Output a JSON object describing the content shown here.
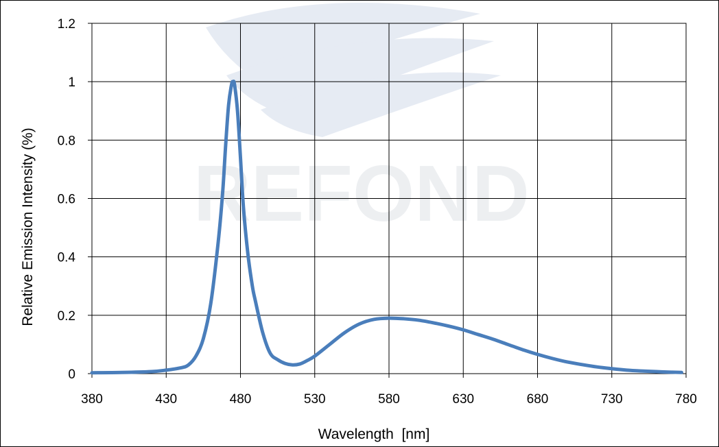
{
  "chart_data": {
    "type": "line",
    "xlabel": "Wavelength  [nm]",
    "ylabel": "Relative Emission Intensity (%)",
    "xlim": [
      380,
      780
    ],
    "ylim": [
      0,
      1.2
    ],
    "xticks": [
      "380",
      "430",
      "480",
      "530",
      "580",
      "630",
      "680",
      "730",
      "780"
    ],
    "yticks": [
      "0",
      "0.2",
      "0.4",
      "0.6",
      "0.8",
      "1",
      "1.2"
    ],
    "grid": true,
    "legend": "none",
    "watermark": "REFOND",
    "series_color": "#4a7ebb",
    "series": [
      {
        "x": [
          380,
          400,
          420,
          430,
          440,
          445,
          450,
          455,
          460,
          465,
          468,
          470,
          472,
          474,
          475,
          476,
          478,
          480,
          482,
          485,
          488,
          490,
          495,
          500,
          505,
          510,
          515,
          520,
          525,
          530,
          540,
          550,
          560,
          570,
          580,
          590,
          600,
          610,
          620,
          630,
          640,
          650,
          660,
          670,
          680,
          690,
          700,
          710,
          720,
          730,
          740,
          750,
          760,
          770,
          777
        ],
        "y": [
          0.003,
          0.004,
          0.007,
          0.012,
          0.02,
          0.03,
          0.06,
          0.12,
          0.24,
          0.45,
          0.62,
          0.78,
          0.92,
          0.99,
          1.0,
          0.99,
          0.9,
          0.74,
          0.57,
          0.41,
          0.3,
          0.25,
          0.14,
          0.07,
          0.048,
          0.035,
          0.03,
          0.033,
          0.045,
          0.06,
          0.1,
          0.14,
          0.17,
          0.186,
          0.19,
          0.188,
          0.183,
          0.174,
          0.163,
          0.15,
          0.134,
          0.118,
          0.1,
          0.082,
          0.066,
          0.052,
          0.04,
          0.031,
          0.023,
          0.017,
          0.012,
          0.009,
          0.007,
          0.005,
          0.004
        ]
      }
    ]
  }
}
